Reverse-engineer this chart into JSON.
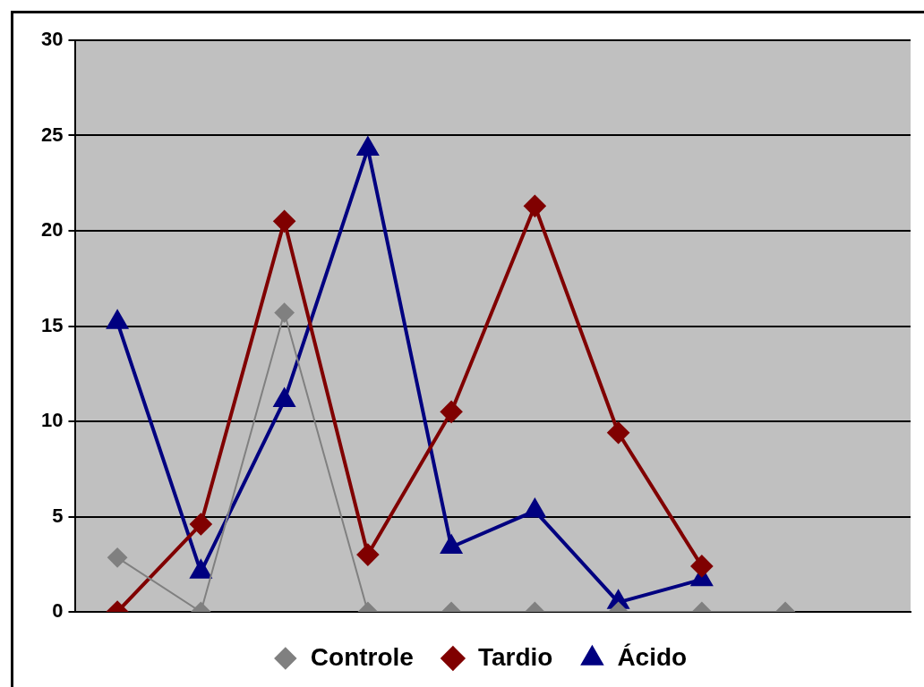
{
  "chart_data": {
    "type": "line",
    "categories": [
      null,
      null,
      null,
      null,
      null,
      null,
      null,
      null,
      null,
      null
    ],
    "series": [
      {
        "name": "Controle",
        "color": "#808080",
        "marker": "diamond",
        "values": [
          2.85,
          0,
          15.7,
          0,
          0,
          0,
          0,
          0,
          0,
          null
        ]
      },
      {
        "name": "Tardio",
        "color": "#800000",
        "marker": "diamond",
        "values": [
          0,
          4.6,
          20.5,
          3.0,
          10.5,
          21.3,
          9.4,
          2.4,
          null,
          null
        ]
      },
      {
        "name": "Ácido",
        "color": "#000080",
        "marker": "triangle",
        "values": [
          15.2,
          2.1,
          11.1,
          24.3,
          3.4,
          5.3,
          0.5,
          1.7,
          null,
          null
        ]
      }
    ],
    "ylim": [
      0,
      30
    ],
    "yticks": [
      0,
      5,
      10,
      15,
      20,
      25,
      30
    ],
    "grid": "y",
    "legend": "bottom",
    "tick_labels": "y"
  }
}
